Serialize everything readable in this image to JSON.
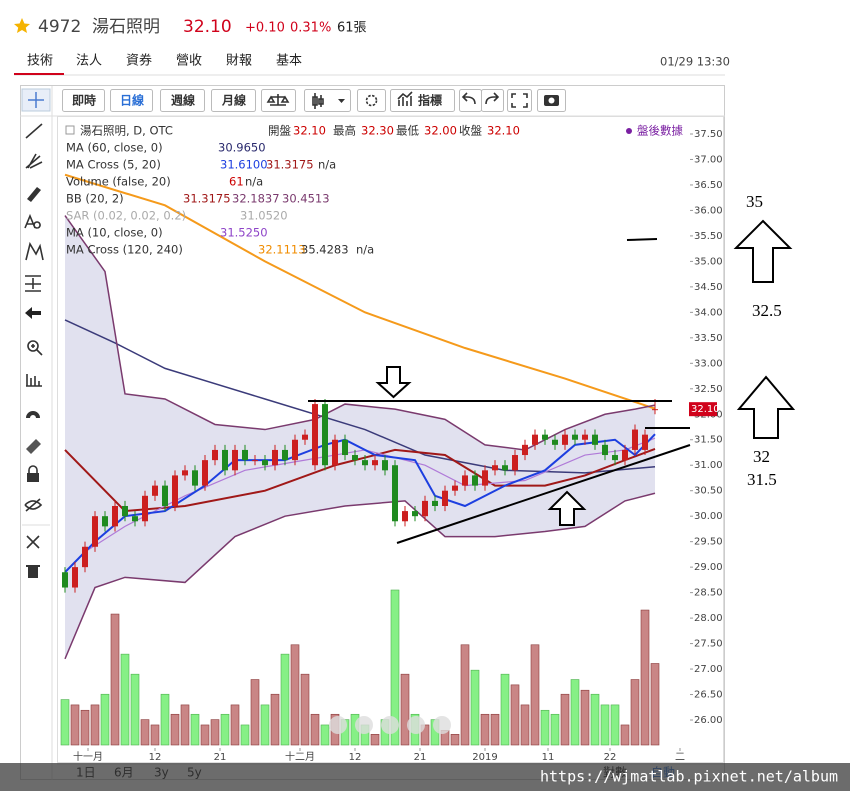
{
  "header": {
    "code": "4972",
    "name": "湯石照明",
    "price": "32.10",
    "change": "+0.10",
    "percent": "0.31%",
    "volume": "61張"
  },
  "tabs": [
    "技術",
    "法人",
    "資券",
    "營收",
    "財報",
    "基本"
  ],
  "timestamp": "01/29 13:30",
  "toolbar": [
    "即時",
    "日線",
    "週線",
    "月線",
    "指標"
  ],
  "legend": {
    "title_row": [
      "湯石照明, D, OTC",
      "開盤",
      "32.10",
      "最高",
      "32.30",
      "最低",
      "32.00",
      "收盤",
      "32.10"
    ],
    "rows": [
      {
        "name": "MA (60, close, 0)",
        "values": [
          "30.9650"
        ]
      },
      {
        "name": "MA Cross (5, 20)",
        "values": [
          "31.6100",
          "31.3175",
          "n/a"
        ]
      },
      {
        "name": "Volume (false, 20)",
        "values": [
          "61",
          "n/a"
        ]
      },
      {
        "name": "BB (20, 2)",
        "values": [
          "31.3175",
          "32.1837",
          "30.4513"
        ]
      },
      {
        "name": "SAR (0.02, 0.02, 0.2)",
        "values": [
          "31.0520"
        ]
      },
      {
        "name": "MA (10, close, 0)",
        "values": [
          "31.5250"
        ]
      },
      {
        "name": "MA Cross (120, 240)",
        "values": [
          "32.1113",
          "35.4283",
          "n/a"
        ]
      }
    ]
  },
  "after_hours": "盤後數據",
  "range_buttons": [
    "1日",
    "6月",
    "3y",
    "5y"
  ],
  "bottom_right": [
    "對數",
    "自動"
  ],
  "watermark": "https://wjmatlab.pixnet.net/album",
  "annotations": [
    "35",
    "32.5",
    "32",
    "31.5"
  ],
  "chart_data": {
    "type": "candlestick",
    "up_color": "#cc1f1f",
    "down_color": "#1f8a1f",
    "volume_up_color": "#c98686",
    "volume_down_color": "#86f086",
    "band_fill": "#dcdcec",
    "xlim": [
      -0.3,
      62.5
    ],
    "ylim": [
      25.5,
      37.8
    ],
    "xticks": [
      {
        "value": 2.3,
        "label": "十一月"
      },
      {
        "value": 9,
        "label": "12"
      },
      {
        "value": 15.5,
        "label": "21"
      },
      {
        "value": 23.5,
        "label": "十二月"
      },
      {
        "value": 29,
        "label": "12"
      },
      {
        "value": 35.5,
        "label": "21"
      },
      {
        "value": 42,
        "label": "2019"
      },
      {
        "value": 48.3,
        "label": "11"
      },
      {
        "value": 54.5,
        "label": "22"
      },
      {
        "value": 61.5,
        "label": "二"
      }
    ],
    "yticks": [
      {
        "value": 26,
        "label": "26.00"
      },
      {
        "value": 26.5,
        "label": "26.50"
      },
      {
        "value": 27,
        "label": "27.00"
      },
      {
        "value": 27.5,
        "label": "27.50"
      },
      {
        "value": 28,
        "label": "28.00"
      },
      {
        "value": 28.5,
        "label": "28.50"
      },
      {
        "value": 29,
        "label": "29.00"
      },
      {
        "value": 29.5,
        "label": "29.50"
      },
      {
        "value": 30,
        "label": "30.00"
      },
      {
        "value": 30.5,
        "label": "30.50"
      },
      {
        "value": 31,
        "label": "31.00"
      },
      {
        "value": 31.5,
        "label": "31.50"
      },
      {
        "value": 32,
        "label": "32.00"
      },
      {
        "value": 32.5,
        "label": "32.50"
      },
      {
        "value": 33,
        "label": "33.00"
      },
      {
        "value": 33.5,
        "label": "33.50"
      },
      {
        "value": 34,
        "label": "34.00"
      },
      {
        "value": 34.5,
        "label": "34.50"
      },
      {
        "value": 35,
        "label": "35.00"
      },
      {
        "value": 35.5,
        "label": "35.50"
      },
      {
        "value": 36,
        "label": "36.00"
      },
      {
        "value": 36.5,
        "label": "36.50"
      },
      {
        "value": 37,
        "label": "37.00"
      },
      {
        "value": 37.5,
        "label": "37.50"
      }
    ],
    "price_tag": {
      "value": 32.1,
      "label": "32.10"
    },
    "open": [
      28.9,
      28.6,
      29.0,
      29.4,
      30.0,
      29.8,
      30.2,
      30.0,
      29.9,
      30.4,
      30.6,
      30.2,
      30.8,
      30.9,
      30.6,
      31.1,
      31.3,
      30.9,
      31.3,
      31.1,
      31.1,
      31.0,
      31.3,
      31.1,
      31.5,
      31.0,
      32.2,
      31.0,
      31.5,
      31.2,
      31.1,
      31.0,
      31.1,
      31.0,
      29.9,
      30.1,
      30.0,
      30.3,
      30.2,
      30.5,
      30.6,
      30.8,
      30.6,
      30.9,
      31.0,
      30.9,
      31.2,
      31.4,
      31.6,
      31.5,
      31.4,
      31.6,
      31.5,
      31.6,
      31.4,
      31.2,
      31.1,
      31.3,
      31.3,
      32.1
    ],
    "high": [
      29.0,
      29.1,
      29.5,
      30.1,
      30.1,
      30.3,
      30.3,
      30.1,
      30.5,
      30.7,
      30.7,
      30.9,
      31.0,
      31.0,
      31.2,
      31.4,
      31.4,
      31.4,
      31.4,
      31.2,
      31.2,
      31.4,
      31.4,
      31.6,
      31.7,
      32.3,
      32.3,
      31.6,
      31.6,
      31.3,
      31.2,
      31.2,
      31.2,
      31.1,
      30.2,
      30.2,
      30.4,
      30.4,
      30.6,
      30.7,
      30.9,
      30.9,
      31.0,
      31.1,
      31.1,
      31.3,
      31.5,
      31.7,
      31.7,
      31.6,
      31.7,
      31.7,
      31.7,
      31.7,
      31.5,
      31.3,
      31.4,
      31.8,
      31.7,
      32.3
    ],
    "low": [
      28.5,
      28.5,
      28.9,
      29.3,
      29.7,
      29.7,
      29.9,
      29.8,
      29.8,
      30.3,
      30.1,
      30.1,
      30.7,
      30.5,
      30.5,
      31.0,
      30.8,
      30.8,
      31.0,
      31.0,
      30.9,
      30.9,
      31.0,
      31.0,
      31.4,
      30.9,
      30.9,
      30.9,
      31.1,
      31.0,
      30.9,
      30.9,
      30.8,
      29.8,
      29.8,
      29.9,
      29.9,
      30.1,
      30.1,
      30.4,
      30.5,
      30.5,
      30.5,
      30.8,
      30.8,
      30.8,
      31.1,
      31.3,
      31.4,
      31.3,
      31.3,
      31.4,
      31.4,
      31.3,
      31.1,
      31.0,
      31.0,
      31.2,
      31.2,
      32.0
    ],
    "close": [
      28.6,
      29.0,
      29.4,
      30.0,
      29.8,
      30.2,
      30.0,
      29.9,
      30.4,
      30.6,
      30.2,
      30.8,
      30.9,
      30.6,
      31.1,
      31.3,
      30.9,
      31.3,
      31.1,
      31.1,
      31.0,
      31.3,
      31.1,
      31.5,
      31.6,
      32.2,
      31.0,
      31.5,
      31.2,
      31.1,
      31.0,
      31.1,
      30.9,
      29.9,
      30.1,
      30.0,
      30.3,
      30.2,
      30.5,
      30.6,
      30.8,
      30.6,
      30.9,
      31.0,
      30.9,
      31.2,
      31.4,
      31.6,
      31.5,
      31.4,
      31.6,
      31.5,
      31.6,
      31.4,
      31.2,
      31.1,
      31.3,
      31.7,
      31.6,
      32.1
    ],
    "volume": [
      34,
      30,
      26,
      30,
      38,
      98,
      68,
      53,
      19,
      15,
      38,
      23,
      30,
      23,
      15,
      19,
      23,
      30,
      15,
      49,
      30,
      38,
      68,
      75,
      53,
      23,
      15,
      23,
      19,
      23,
      15,
      8,
      19,
      116,
      53,
      23,
      15,
      19,
      11,
      8,
      75,
      56,
      23,
      23,
      53,
      45,
      30,
      75,
      26,
      23,
      38,
      49,
      41,
      38,
      30,
      30,
      15,
      49,
      101,
      61
    ],
    "lines": [
      {
        "color": "#f59a1b",
        "width": 2,
        "x": [
          0,
          10,
          20,
          30,
          40,
          50,
          59
        ],
        "values": [
          36.7,
          36.1,
          35.0,
          34.0,
          33.3,
          32.7,
          32.11
        ]
      },
      {
        "color": "#3b3b7a",
        "width": 1.5,
        "x": [
          0,
          5,
          10,
          20,
          30,
          36,
          44,
          52,
          59
        ],
        "values": [
          33.85,
          33.4,
          32.9,
          32.3,
          31.7,
          31.2,
          30.9,
          30.85,
          30.97
        ]
      },
      {
        "color": "#7a3a6e",
        "width": 1.5,
        "role": "band_upper",
        "x": [
          0,
          4,
          6,
          10,
          15,
          20,
          25,
          28,
          33,
          38,
          42,
          46,
          50,
          54,
          57,
          59
        ],
        "values": [
          35.9,
          34.8,
          32.4,
          32.3,
          31.8,
          31.7,
          31.9,
          32.2,
          32.1,
          31.9,
          31.4,
          31.3,
          31.7,
          32.0,
          32.1,
          32.18
        ]
      },
      {
        "color": "#7a3a6e",
        "width": 1.5,
        "role": "band_lower",
        "x": [
          0,
          3,
          6,
          12,
          17,
          22,
          28,
          34,
          38,
          43,
          48,
          52,
          56,
          59
        ],
        "values": [
          27.2,
          28.6,
          28.8,
          28.7,
          29.6,
          30.0,
          30.2,
          30.3,
          29.6,
          29.6,
          29.7,
          29.8,
          30.3,
          30.45
        ]
      },
      {
        "color": "#a01818",
        "width": 2,
        "x": [
          0,
          6,
          12,
          20,
          27,
          33,
          38,
          43,
          48,
          52,
          56,
          59
        ],
        "values": [
          31.3,
          30.1,
          30.2,
          30.5,
          31.0,
          31.3,
          31.2,
          30.6,
          30.6,
          30.8,
          31.1,
          31.32
        ]
      },
      {
        "color": "#b07ad8",
        "width": 1.2,
        "x": [
          2,
          6,
          12,
          18,
          24,
          30,
          36,
          40,
          46,
          52,
          56,
          59
        ],
        "values": [
          29.3,
          29.8,
          30.4,
          30.9,
          31.1,
          31.3,
          31.0,
          30.6,
          30.7,
          31.2,
          31.3,
          31.53
        ]
      },
      {
        "color": "#1d3fe0",
        "width": 2,
        "x": [
          0,
          3,
          6,
          10,
          14,
          17,
          22,
          26,
          28,
          31,
          35,
          37,
          40,
          44,
          48,
          51,
          55,
          57,
          59
        ],
        "values": [
          28.9,
          29.5,
          30.0,
          30.1,
          30.6,
          31.1,
          31.1,
          31.4,
          31.5,
          31.2,
          31.1,
          30.4,
          30.2,
          30.6,
          30.9,
          31.4,
          31.5,
          31.2,
          31.61
        ]
      }
    ]
  }
}
